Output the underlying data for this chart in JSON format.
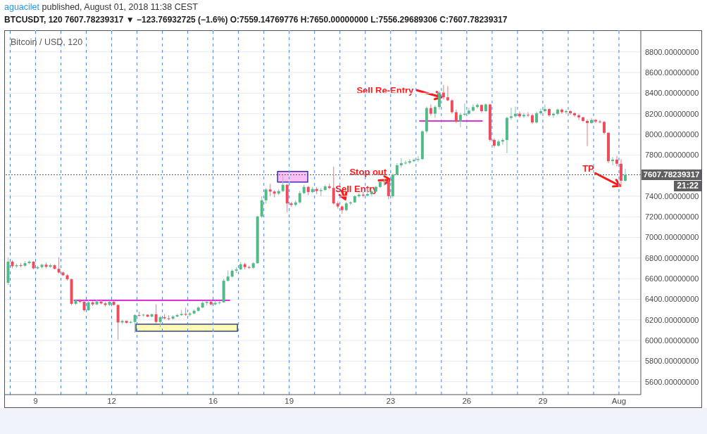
{
  "chart_data": {
    "type": "candlestick",
    "title": "Bitcoin / USD, 120",
    "subtitle": "BTCUSDT, 120 7607.78239317 ▼ −123.76932725 (−1.6%) O:7559.14769776 H:7650.00000000 L:7556.29689306 C:7607.78239317",
    "annotations": [
      "aguacilet",
      "published, August 01, 2018 11:38 CEST",
      "21:22",
      {
        "text": "Sell Re-Entry",
        "x": "2018-07-25T00:00",
        "y": 8360
      },
      {
        "text": "Stop out",
        "x": "2018-07-23T00:00",
        "y": 7560
      },
      {
        "text": "Sell Entry",
        "x": "2018-07-21T05:00",
        "y": 7370
      },
      {
        "text": "TP",
        "x": "2018-08-01T01:00",
        "y": 7500
      }
    ],
    "x": [
      "2018-07-07T22:00",
      "2018-07-08T02:00",
      "2018-07-08T06:00",
      "2018-07-08T10:00",
      "2018-07-08T14:00",
      "2018-07-08T18:00",
      "2018-07-08T22:00",
      "2018-07-09T02:00",
      "2018-07-09T06:00",
      "2018-07-09T10:00",
      "2018-07-09T14:00",
      "2018-07-09T18:00",
      "2018-07-09T22:00",
      "2018-07-10T02:00",
      "2018-07-10T06:00",
      "2018-07-10T10:00",
      "2018-07-10T14:00",
      "2018-07-10T18:00",
      "2018-07-10T22:00",
      "2018-07-11T02:00",
      "2018-07-11T06:00",
      "2018-07-11T10:00",
      "2018-07-11T14:00",
      "2018-07-11T18:00",
      "2018-07-11T22:00",
      "2018-07-12T02:00",
      "2018-07-12T06:00",
      "2018-07-12T10:00",
      "2018-07-12T14:00",
      "2018-07-12T18:00",
      "2018-07-12T22:00",
      "2018-07-13T02:00",
      "2018-07-13T06:00",
      "2018-07-13T10:00",
      "2018-07-13T14:00",
      "2018-07-13T18:00",
      "2018-07-13T22:00",
      "2018-07-14T02:00",
      "2018-07-14T06:00",
      "2018-07-14T10:00",
      "2018-07-14T14:00",
      "2018-07-14T18:00",
      "2018-07-14T22:00",
      "2018-07-15T02:00",
      "2018-07-15T06:00",
      "2018-07-15T10:00",
      "2018-07-15T14:00",
      "2018-07-15T18:00",
      "2018-07-15T22:00",
      "2018-07-16T02:00",
      "2018-07-16T06:00",
      "2018-07-16T10:00",
      "2018-07-16T14:00",
      "2018-07-16T18:00",
      "2018-07-16T22:00",
      "2018-07-17T02:00",
      "2018-07-17T06:00",
      "2018-07-17T10:00",
      "2018-07-17T14:00",
      "2018-07-17T18:00",
      "2018-07-17T22:00",
      "2018-07-18T02:00",
      "2018-07-18T06:00",
      "2018-07-18T10:00",
      "2018-07-18T14:00",
      "2018-07-18T18:00",
      "2018-07-18T22:00",
      "2018-07-19T02:00",
      "2018-07-19T06:00",
      "2018-07-19T10:00",
      "2018-07-19T14:00",
      "2018-07-19T18:00",
      "2018-07-19T22:00",
      "2018-07-20T02:00",
      "2018-07-20T06:00",
      "2018-07-20T10:00",
      "2018-07-20T14:00",
      "2018-07-20T18:00",
      "2018-07-20T22:00",
      "2018-07-21T02:00",
      "2018-07-21T06:00",
      "2018-07-21T10:00",
      "2018-07-21T14:00",
      "2018-07-21T18:00",
      "2018-07-21T22:00",
      "2018-07-22T02:00",
      "2018-07-22T06:00",
      "2018-07-22T10:00",
      "2018-07-22T14:00",
      "2018-07-22T18:00",
      "2018-07-22T22:00",
      "2018-07-23T02:00",
      "2018-07-23T06:00",
      "2018-07-23T10:00",
      "2018-07-23T14:00",
      "2018-07-23T18:00",
      "2018-07-23T22:00",
      "2018-07-24T02:00",
      "2018-07-24T06:00",
      "2018-07-24T10:00",
      "2018-07-24T14:00",
      "2018-07-24T18:00",
      "2018-07-24T22:00",
      "2018-07-25T02:00",
      "2018-07-25T06:00",
      "2018-07-25T10:00",
      "2018-07-25T14:00",
      "2018-07-25T18:00",
      "2018-07-25T22:00",
      "2018-07-26T02:00",
      "2018-07-26T06:00",
      "2018-07-26T10:00",
      "2018-07-26T14:00",
      "2018-07-26T18:00",
      "2018-07-26T22:00",
      "2018-07-27T02:00",
      "2018-07-27T06:00",
      "2018-07-27T10:00",
      "2018-07-27T14:00",
      "2018-07-27T18:00",
      "2018-07-27T22:00",
      "2018-07-28T02:00",
      "2018-07-28T06:00",
      "2018-07-28T10:00",
      "2018-07-28T14:00",
      "2018-07-28T18:00",
      "2018-07-28T22:00",
      "2018-07-29T02:00",
      "2018-07-29T06:00",
      "2018-07-29T10:00",
      "2018-07-29T14:00",
      "2018-07-29T18:00",
      "2018-07-29T22:00",
      "2018-07-30T02:00",
      "2018-07-30T06:00",
      "2018-07-30T10:00",
      "2018-07-30T14:00",
      "2018-07-30T18:00",
      "2018-07-30T22:00",
      "2018-07-31T02:00",
      "2018-07-31T06:00",
      "2018-07-31T10:00",
      "2018-07-31T14:00",
      "2018-07-31T18:00",
      "2018-07-31T22:00",
      "2018-08-01T02:00",
      "2018-08-01T06:00"
    ],
    "ohlc": [
      [
        6560,
        6807,
        6540,
        6765
      ],
      [
        6765,
        6780,
        6700,
        6720
      ],
      [
        6720,
        6745,
        6705,
        6730
      ],
      [
        6730,
        6750,
        6710,
        6725
      ],
      [
        6725,
        6770,
        6715,
        6750
      ],
      [
        6750,
        6775,
        6740,
        6765
      ],
      [
        6765,
        6770,
        6690,
        6700
      ],
      [
        6700,
        6725,
        6690,
        6712
      ],
      [
        6712,
        6745,
        6700,
        6735
      ],
      [
        6735,
        6755,
        6700,
        6715
      ],
      [
        6715,
        6745,
        6705,
        6730
      ],
      [
        6730,
        6740,
        6690,
        6695
      ],
      [
        6695,
        6807,
        6650,
        6660
      ],
      [
        6660,
        6670,
        6625,
        6633
      ],
      [
        6633,
        6645,
        6580,
        6595
      ],
      [
        6595,
        6600,
        6340,
        6356
      ],
      [
        6356,
        6400,
        6345,
        6390
      ],
      [
        6390,
        6400,
        6365,
        6375
      ],
      [
        6375,
        6390,
        6280,
        6294
      ],
      [
        6294,
        6395,
        6285,
        6370
      ],
      [
        6370,
        6380,
        6335,
        6350
      ],
      [
        6350,
        6395,
        6340,
        6378
      ],
      [
        6378,
        6400,
        6350,
        6360
      ],
      [
        6360,
        6375,
        6330,
        6345
      ],
      [
        6345,
        6385,
        6335,
        6375
      ],
      [
        6375,
        6385,
        6340,
        6345
      ],
      [
        6345,
        6350,
        6008,
        6175
      ],
      [
        6175,
        6200,
        6160,
        6190
      ],
      [
        6190,
        6195,
        6165,
        6172
      ],
      [
        6172,
        6190,
        6165,
        6180
      ],
      [
        6180,
        6255,
        6075,
        6247
      ],
      [
        6247,
        6280,
        6235,
        6245
      ],
      [
        6245,
        6260,
        6230,
        6250
      ],
      [
        6250,
        6255,
        6225,
        6232
      ],
      [
        6232,
        6260,
        6225,
        6255
      ],
      [
        6255,
        6350,
        6170,
        6180
      ],
      [
        6180,
        6240,
        6130,
        6226
      ],
      [
        6226,
        6255,
        6205,
        6215
      ],
      [
        6215,
        6245,
        6195,
        6212
      ],
      [
        6212,
        6245,
        6200,
        6233
      ],
      [
        6233,
        6260,
        6225,
        6247
      ],
      [
        6247,
        6295,
        6240,
        6258
      ],
      [
        6258,
        6320,
        6240,
        6250
      ],
      [
        6250,
        6275,
        6235,
        6262
      ],
      [
        6262,
        6300,
        6255,
        6288
      ],
      [
        6288,
        6330,
        6280,
        6320
      ],
      [
        6320,
        6380,
        6315,
        6365
      ],
      [
        6365,
        6385,
        6340,
        6375
      ],
      [
        6375,
        6390,
        6340,
        6350
      ],
      [
        6350,
        6385,
        6340,
        6365
      ],
      [
        6365,
        6385,
        6350,
        6370
      ],
      [
        6370,
        6600,
        6365,
        6580
      ],
      [
        6580,
        6680,
        6570,
        6620
      ],
      [
        6620,
        6690,
        6610,
        6677
      ],
      [
        6677,
        6710,
        6655,
        6690
      ],
      [
        6690,
        6760,
        6685,
        6740
      ],
      [
        6740,
        6755,
        6690,
        6712
      ],
      [
        6712,
        6725,
        6695,
        6705
      ],
      [
        6705,
        6760,
        6695,
        6750
      ],
      [
        6750,
        7210,
        6745,
        7203
      ],
      [
        7203,
        7400,
        7190,
        7360
      ],
      [
        7360,
        7480,
        7330,
        7465
      ],
      [
        7465,
        7520,
        7400,
        7445
      ],
      [
        7445,
        7460,
        7390,
        7425
      ],
      [
        7425,
        7470,
        7410,
        7450
      ],
      [
        7450,
        7600,
        7440,
        7510
      ],
      [
        7510,
        7520,
        7244,
        7330
      ],
      [
        7330,
        7345,
        7295,
        7315
      ],
      [
        7315,
        7360,
        7300,
        7340
      ],
      [
        7340,
        7450,
        7330,
        7430
      ],
      [
        7430,
        7510,
        7420,
        7490
      ],
      [
        7490,
        7500,
        7410,
        7440
      ],
      [
        7440,
        7490,
        7430,
        7470
      ],
      [
        7470,
        7490,
        7420,
        7450
      ],
      [
        7450,
        7480,
        7400,
        7460
      ],
      [
        7460,
        7510,
        7450,
        7495
      ],
      [
        7495,
        7520,
        7470,
        7480
      ],
      [
        7480,
        7688,
        7320,
        7330
      ],
      [
        7330,
        7350,
        7280,
        7300
      ],
      [
        7300,
        7310,
        7230,
        7265
      ],
      [
        7265,
        7345,
        7255,
        7330
      ],
      [
        7330,
        7350,
        7315,
        7340
      ],
      [
        7340,
        7410,
        7335,
        7400
      ],
      [
        7400,
        7430,
        7385,
        7415
      ],
      [
        7415,
        7440,
        7390,
        7405
      ],
      [
        7405,
        7480,
        7400,
        7420
      ],
      [
        7420,
        7460,
        7400,
        7445
      ],
      [
        7445,
        7500,
        7440,
        7490
      ],
      [
        7490,
        7550,
        7480,
        7540
      ],
      [
        7540,
        7570,
        7500,
        7545
      ],
      [
        7545,
        7560,
        7370,
        7400
      ],
      [
        7400,
        7620,
        7380,
        7610
      ],
      [
        7610,
        7720,
        7600,
        7700
      ],
      [
        7700,
        7770,
        7680,
        7720
      ],
      [
        7720,
        7745,
        7705,
        7725
      ],
      [
        7725,
        7760,
        7710,
        7740
      ],
      [
        7740,
        7765,
        7730,
        7752
      ],
      [
        7752,
        7790,
        7735,
        7760
      ],
      [
        7760,
        8040,
        7755,
        8029
      ],
      [
        8029,
        8270,
        8010,
        8255
      ],
      [
        8255,
        8290,
        8180,
        8200
      ],
      [
        8200,
        8280,
        8160,
        8265
      ],
      [
        8265,
        8420,
        8240,
        8405
      ],
      [
        8405,
        8480,
        8340,
        8360
      ],
      [
        8360,
        8470,
        8325,
        8330
      ],
      [
        8330,
        8340,
        8200,
        8215
      ],
      [
        8215,
        8240,
        8110,
        8125
      ],
      [
        8125,
        8210,
        8070,
        8190
      ],
      [
        8190,
        8300,
        8180,
        8200
      ],
      [
        8200,
        8260,
        8190,
        8230
      ],
      [
        8230,
        8290,
        8220,
        8265
      ],
      [
        8265,
        8300,
        8250,
        8285
      ],
      [
        8285,
        8290,
        8210,
        8225
      ],
      [
        8225,
        8300,
        8215,
        8290
      ],
      [
        8290,
        8295,
        7930,
        7946
      ],
      [
        7946,
        7960,
        7872,
        7890
      ],
      [
        7890,
        7950,
        7880,
        7930
      ],
      [
        7930,
        7960,
        7900,
        7945
      ],
      [
        7945,
        8170,
        7817,
        8160
      ],
      [
        8160,
        8260,
        8140,
        8175
      ],
      [
        8175,
        8270,
        8165,
        8200
      ],
      [
        8200,
        8220,
        8160,
        8175
      ],
      [
        8175,
        8210,
        8160,
        8190
      ],
      [
        8190,
        8215,
        8170,
        8185
      ],
      [
        8185,
        8200,
        8100,
        8115
      ],
      [
        8115,
        8220,
        8105,
        8205
      ],
      [
        8205,
        8250,
        8190,
        8225
      ],
      [
        8225,
        8290,
        8215,
        8245
      ],
      [
        8245,
        8255,
        8170,
        8185
      ],
      [
        8185,
        8210,
        8160,
        8200
      ],
      [
        8200,
        8250,
        8185,
        8240
      ],
      [
        8240,
        8250,
        8200,
        8215
      ],
      [
        8215,
        8240,
        8195,
        8225
      ],
      [
        8225,
        8235,
        8190,
        8205
      ],
      [
        8205,
        8215,
        8170,
        8185
      ],
      [
        8185,
        8200,
        8140,
        8165
      ],
      [
        8165,
        8170,
        8120,
        8130
      ],
      [
        8130,
        8145,
        7886,
        8110
      ],
      [
        8110,
        8160,
        8100,
        8140
      ],
      [
        8140,
        8150,
        8110,
        8125
      ],
      [
        8125,
        8140,
        8105,
        8120
      ],
      [
        8120,
        8130,
        8000,
        8015
      ],
      [
        8015,
        8020,
        7720,
        7740
      ],
      [
        7740,
        7780,
        7700,
        7755
      ],
      [
        7755,
        7790,
        7690,
        7715
      ],
      [
        7715,
        7760,
        7490,
        7550
      ],
      [
        7550,
        7667,
        7540,
        7607.78
      ]
    ],
    "colors": [
      "#53b987",
      "#eb4d5c",
      "#53b987",
      "#eb4d5c",
      "#53b987",
      "#53b987",
      "#eb4d5c",
      "#53b987",
      "#53b987",
      "#eb4d5c",
      "#53b987",
      "#eb4d5c",
      "#eb4d5c",
      "#eb4d5c",
      "#eb4d5c",
      "#eb4d5c",
      "#53b987",
      "#eb4d5c",
      "#eb4d5c",
      "#53b987",
      "#eb4d5c",
      "#53b987",
      "#eb4d5c",
      "#eb4d5c",
      "#53b987",
      "#eb4d5c",
      "#eb4d5c",
      "#53b987",
      "#eb4d5c",
      "#53b987",
      "#53b987",
      "#eb4d5c",
      "#53b987",
      "#eb4d5c",
      "#53b987",
      "#eb4d5c",
      "#53b987",
      "#eb4d5c",
      "#eb4d5c",
      "#53b987",
      "#53b987",
      "#53b987",
      "#eb4d5c",
      "#53b987",
      "#53b987",
      "#53b987",
      "#53b987",
      "#53b987",
      "#eb4d5c",
      "#53b987",
      "#53b987",
      "#53b987",
      "#53b987",
      "#53b987",
      "#53b987",
      "#53b987",
      "#eb4d5c",
      "#eb4d5c",
      "#53b987",
      "#53b987",
      "#53b987",
      "#53b987",
      "#eb4d5c",
      "#eb4d5c",
      "#53b987",
      "#53b987",
      "#eb4d5c",
      "#eb4d5c",
      "#53b987",
      "#53b987",
      "#53b987",
      "#eb4d5c",
      "#53b987",
      "#eb4d5c",
      "#53b987",
      "#53b987",
      "#eb4d5c",
      "#eb4d5c",
      "#eb4d5c",
      "#eb4d5c",
      "#53b987",
      "#53b987",
      "#53b987",
      "#53b987",
      "#eb4d5c",
      "#53b987",
      "#53b987",
      "#53b987",
      "#53b987",
      "#53b987",
      "#eb4d5c",
      "#53b987",
      "#53b987",
      "#53b987",
      "#53b987",
      "#53b987",
      "#53b987",
      "#53b987",
      "#53b987",
      "#53b987",
      "#eb4d5c",
      "#53b987",
      "#53b987",
      "#eb4d5c",
      "#eb4d5c",
      "#eb4d5c",
      "#eb4d5c",
      "#53b987",
      "#53b987",
      "#53b987",
      "#53b987",
      "#53b987",
      "#eb4d5c",
      "#53b987",
      "#eb4d5c",
      "#eb4d5c",
      "#53b987",
      "#53b987",
      "#53b987",
      "#53b987",
      "#53b987",
      "#eb4d5c",
      "#53b987",
      "#eb4d5c",
      "#eb4d5c",
      "#53b987",
      "#53b987",
      "#53b987",
      "#eb4d5c",
      "#53b987",
      "#53b987",
      "#eb4d5c",
      "#53b987",
      "#eb4d5c",
      "#eb4d5c",
      "#eb4d5c",
      "#eb4d5c",
      "#eb4d5c",
      "#53b987",
      "#eb4d5c",
      "#eb4d5c",
      "#eb4d5c",
      "#eb4d5c",
      "#53b987",
      "#eb4d5c",
      "#eb4d5c",
      "#53b987"
    ],
    "series": [
      {
        "type": "line",
        "x": [
          "2018-07-10T12:00",
          "2018-07-16T16:00"
        ],
        "values": [
          6390,
          6390
        ],
        "color": "#dd33dd"
      },
      {
        "type": "line",
        "x": [
          "2018-07-24T03:00",
          "2018-07-26T15:00"
        ],
        "values": [
          8130,
          8130
        ],
        "color": "#dd33dd"
      }
    ],
    "xlim": [
      "2018-07-07T19:00",
      "2018-08-01T20:40"
    ],
    "xticks": [
      {
        "value": "2018-07-09",
        "label": "9"
      },
      {
        "value": "2018-07-12",
        "label": "12"
      },
      {
        "value": "2018-07-16",
        "label": "16"
      },
      {
        "value": "2018-07-19",
        "label": "19"
      },
      {
        "value": "2018-07-23",
        "label": "23"
      },
      {
        "value": "2018-07-26",
        "label": "26"
      },
      {
        "value": "2018-07-29",
        "label": "29"
      },
      {
        "value": "2018-08-01",
        "label": "Aug"
      }
    ],
    "ylim": [
      5475,
      9010
    ],
    "yticks": [
      {
        "value": 5600,
        "label": "5600.00000000"
      },
      {
        "value": 5800,
        "label": "5800.00000000"
      },
      {
        "value": 6000,
        "label": "6000.00000000"
      },
      {
        "value": 6200,
        "label": "6200.00000000"
      },
      {
        "value": 6400,
        "label": "6400.00000000"
      },
      {
        "value": 6600,
        "label": "6600.00000000"
      },
      {
        "value": 6800,
        "label": "6800.00000000"
      },
      {
        "value": 7000,
        "label": "7000.00000000"
      },
      {
        "value": 7200,
        "label": "7200.00000000"
      },
      {
        "value": 7400,
        "label": "7400.00000000"
      },
      {
        "value": 7800,
        "label": "7800.00000000"
      },
      {
        "value": 8000,
        "label": "8000.00000000"
      },
      {
        "value": 8200,
        "label": "8200.00000000"
      },
      {
        "value": 8400,
        "label": "8400.00000000"
      },
      {
        "value": 8600,
        "label": "8600.00000000"
      },
      {
        "value": 8800,
        "label": "8800.00000000"
      }
    ],
    "grid": true,
    "ref_lines": [
      {
        "axis": "y",
        "value": 7607.78239317,
        "label": "7607.78239317",
        "color": "#555555",
        "line_style": "dotted"
      },
      {
        "axis": "x",
        "value": "2018-07-08",
        "color": "#4a86e8",
        "line_style": "dashed"
      },
      {
        "axis": "x",
        "value": "2018-07-09",
        "color": "#4a86e8",
        "line_style": "dashed"
      },
      {
        "axis": "x",
        "value": "2018-07-10",
        "color": "#4a86e8",
        "line_style": "dashed"
      },
      {
        "axis": "x",
        "value": "2018-07-11",
        "color": "#4a86e8",
        "line_style": "dashed"
      },
      {
        "axis": "x",
        "value": "2018-07-12",
        "color": "#4a86e8",
        "line_style": "dashed"
      },
      {
        "axis": "x",
        "value": "2018-07-13",
        "color": "#4a86e8",
        "line_style": "dashed"
      },
      {
        "axis": "x",
        "value": "2018-07-14",
        "color": "#4a86e8",
        "line_style": "dashed"
      },
      {
        "axis": "x",
        "value": "2018-07-15",
        "color": "#4a86e8",
        "line_style": "dashed"
      },
      {
        "axis": "x",
        "value": "2018-07-16",
        "color": "#4a86e8",
        "line_style": "dashed"
      },
      {
        "axis": "x",
        "value": "2018-07-17",
        "color": "#4a86e8",
        "line_style": "dashed"
      },
      {
        "axis": "x",
        "value": "2018-07-18",
        "color": "#4a86e8",
        "line_style": "dashed"
      },
      {
        "axis": "x",
        "value": "2018-07-19",
        "color": "#4a86e8",
        "line_style": "dashed"
      },
      {
        "axis": "x",
        "value": "2018-07-20",
        "color": "#4a86e8",
        "line_style": "dashed"
      },
      {
        "axis": "x",
        "value": "2018-07-21",
        "color": "#4a86e8",
        "line_style": "dashed"
      },
      {
        "axis": "x",
        "value": "2018-07-22",
        "color": "#4a86e8",
        "line_style": "dashed"
      },
      {
        "axis": "x",
        "value": "2018-07-23",
        "color": "#4a86e8",
        "line_style": "dashed"
      },
      {
        "axis": "x",
        "value": "2018-07-24",
        "color": "#4a86e8",
        "line_style": "dashed"
      },
      {
        "axis": "x",
        "value": "2018-07-25",
        "color": "#4a86e8",
        "line_style": "dashed"
      },
      {
        "axis": "x",
        "value": "2018-07-26",
        "color": "#4a86e8",
        "line_style": "dashed"
      },
      {
        "axis": "x",
        "value": "2018-07-27",
        "color": "#4a86e8",
        "line_style": "dashed"
      },
      {
        "axis": "x",
        "value": "2018-07-28",
        "color": "#4a86e8",
        "line_style": "dashed"
      },
      {
        "axis": "x",
        "value": "2018-07-29",
        "color": "#4a86e8",
        "line_style": "dashed"
      },
      {
        "axis": "x",
        "value": "2018-07-30",
        "color": "#4a86e8",
        "line_style": "dashed"
      },
      {
        "axis": "x",
        "value": "2018-07-31",
        "color": "#4a86e8",
        "line_style": "dashed"
      },
      {
        "axis": "x",
        "value": "2018-08-01",
        "color": "#4a86e8",
        "line_style": "dashed"
      }
    ]
  }
}
